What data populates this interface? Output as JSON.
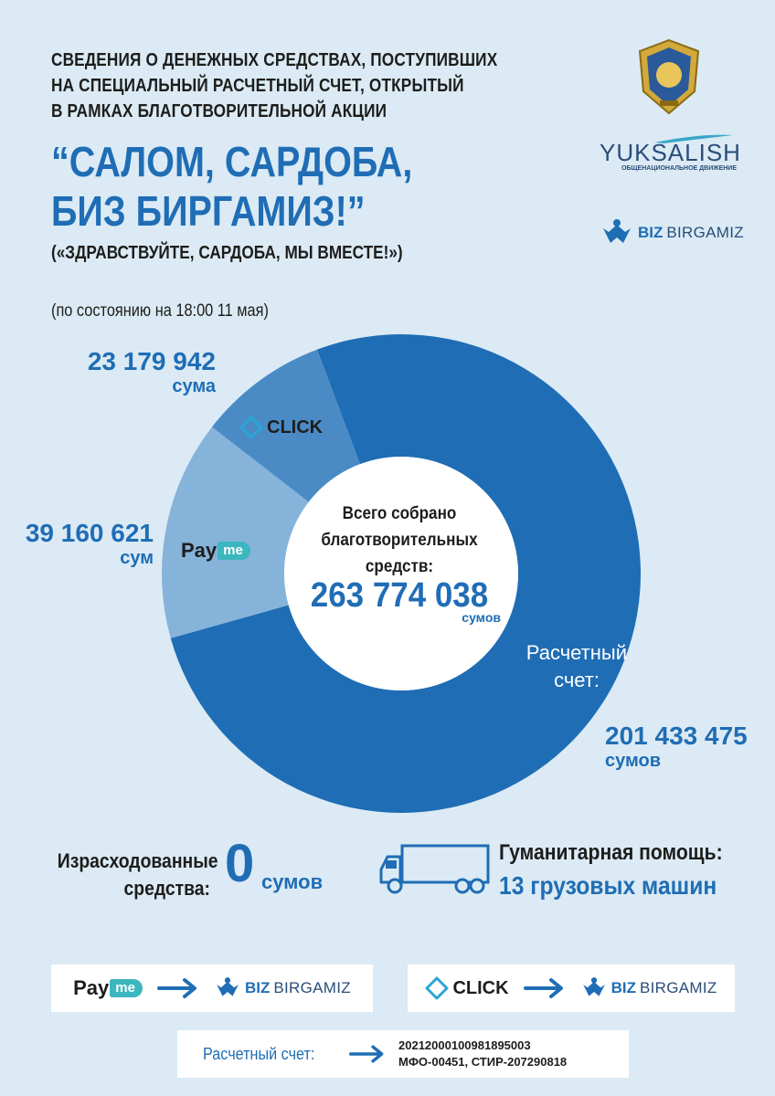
{
  "header": {
    "lines": [
      "СВЕДЕНИЯ О ДЕНЕЖНЫХ СРЕДСТВАХ, ПОСТУПИВШИХ",
      "НА СПЕЦИАЛЬНЫЙ РАСЧЕТНЫЙ СЧЕТ, ОТКРЫТЫЙ",
      "В РАМКАХ БЛАГОТВОРИТЕЛЬНОЙ АКЦИИ"
    ],
    "title_line1": "“САЛОМ, САРДОБА,",
    "title_line2": "БИЗ БИРГАМИЗ!”",
    "subtitle": "(«ЗДРАВСТВУЙТЕ, САРДОБА, МЫ ВМЕСТЕ!»)",
    "as_of": "(по состоянию на 18:00 11 мая)"
  },
  "logos": {
    "yuksalish_name": "YUKSALISH",
    "yuksalish_tag": "ОБЩЕНАЦИОНАЛЬНОЕ ДВИЖЕНИЕ",
    "biz": "BIZ",
    "birgamiz": "BIRGAMIZ",
    "payme_pay": "Pay",
    "payme_me": "me",
    "click": "CLICK"
  },
  "chart_data": {
    "type": "pie",
    "categories": [
      "Расчетный счет",
      "Payme",
      "CLICK"
    ],
    "values": [
      201433475,
      39160621,
      23179942
    ],
    "colors": [
      "#1f6db5",
      "#86b3da",
      "#4a8bc6"
    ]
  },
  "segments": {
    "click_value": "23 179 942",
    "click_unit": "сума",
    "payme_value": "39 160 621",
    "payme_unit": "сум",
    "account_label_1": "Расчетный",
    "account_label_2": "счет:",
    "account_value": "201 433 475",
    "account_unit": "сумов"
  },
  "center": {
    "line1": "Всего собрано",
    "line2": "благотворительных",
    "line3": "средств:",
    "total": "263 774  038",
    "unit": "сумов"
  },
  "spent": {
    "label_1": "Израсходованные",
    "label_2": "средства:",
    "value": "0",
    "unit": "сумов"
  },
  "aid": {
    "label": "Гуманитарная помощь:",
    "value": "13 грузовых машин"
  },
  "account": {
    "label": "Расчетный счет:",
    "number": "20212000100981895003",
    "details": "МФО-00451, СТИР-207290818"
  }
}
